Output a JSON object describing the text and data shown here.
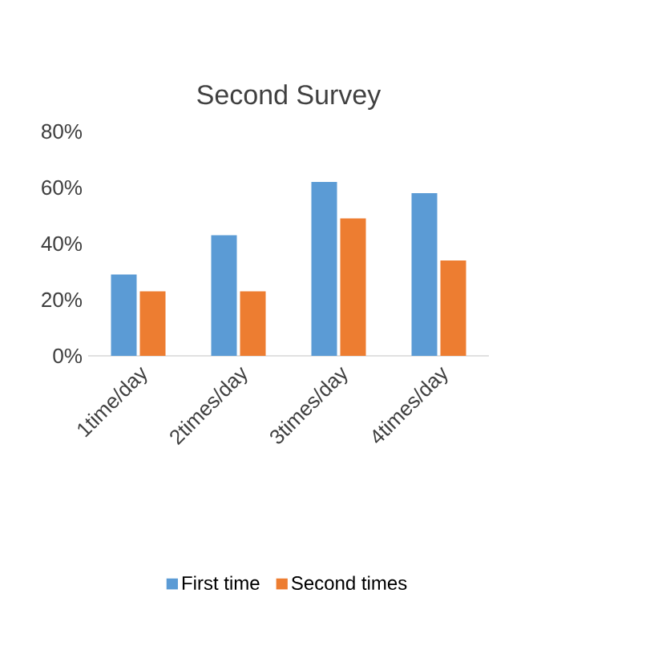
{
  "chart_data": {
    "type": "bar",
    "title": "Second Survey",
    "categories": [
      "1time/day",
      "2times/day",
      "3times/day",
      "4times/day"
    ],
    "series": [
      {
        "name": "First time",
        "color": "#5b9bd5",
        "values": [
          29,
          43,
          62,
          58
        ]
      },
      {
        "name": "Second times",
        "color": "#ed7d31",
        "values": [
          23,
          23,
          49,
          34
        ]
      }
    ],
    "ylim": [
      0,
      80
    ],
    "yticks": [
      {
        "value": 0,
        "label": "0%"
      },
      {
        "value": 20,
        "label": "20%"
      },
      {
        "value": 40,
        "label": "40%"
      },
      {
        "value": 60,
        "label": "60%"
      },
      {
        "value": 80,
        "label": "80%"
      }
    ],
    "grid": false,
    "legend": "bottom"
  }
}
